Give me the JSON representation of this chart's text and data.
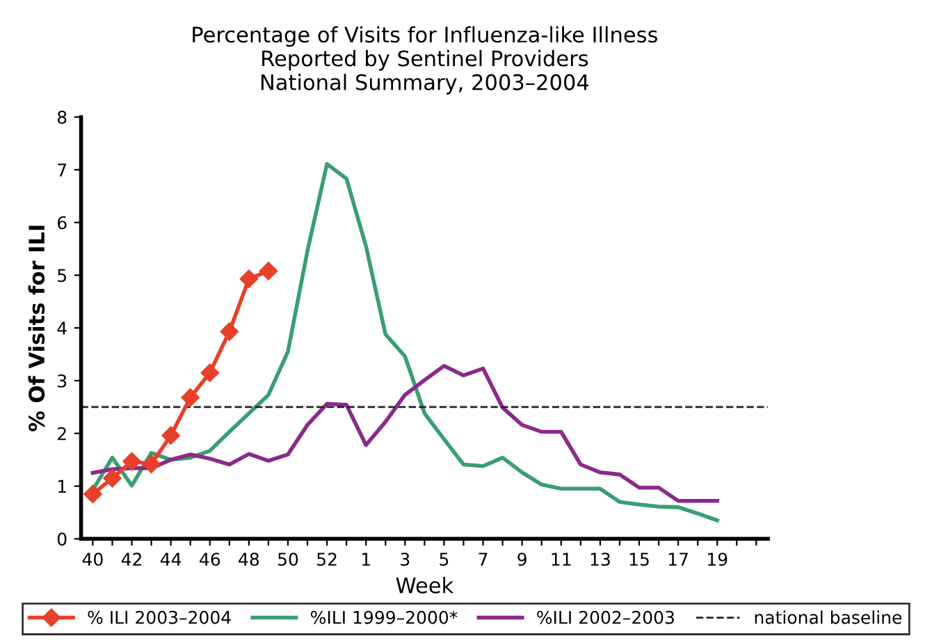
{
  "chart_data": {
    "type": "line",
    "title": "Percentage of Visits for Influenza-like Illness\nReported by Sentinel Providers\nNational Summary, 2003–2004",
    "xlabel": "Week",
    "ylabel": "% Of Visits for ILI",
    "categories": [
      "40",
      null,
      "42",
      null,
      "44",
      null,
      "46",
      null,
      "48",
      null,
      "50",
      null,
      "52",
      null,
      "1",
      null,
      "3",
      null,
      "5",
      null,
      "7",
      null,
      "9",
      null,
      "11",
      null,
      "13",
      null,
      "15",
      null,
      "17",
      null,
      "19",
      null,
      null
    ],
    "series": [
      {
        "name": "% ILI 2003–2004",
        "color": "#e8402a",
        "marker": "diamond",
        "values": [
          0.85,
          1.15,
          1.47,
          1.42,
          1.96,
          2.68,
          3.15,
          3.93,
          4.93,
          5.08,
          null,
          null,
          null,
          null,
          null,
          null,
          null,
          null,
          null,
          null,
          null,
          null,
          null,
          null,
          null,
          null,
          null,
          null,
          null,
          null,
          null,
          null,
          null,
          null,
          null
        ]
      },
      {
        "name": "%ILI 1999–2000*",
        "color": "#3a9e72",
        "values": [
          0.93,
          1.54,
          1.01,
          1.63,
          1.5,
          1.54,
          1.67,
          2.03,
          2.38,
          2.73,
          3.55,
          5.46,
          7.11,
          6.83,
          5.55,
          3.88,
          3.46,
          2.38,
          1.89,
          1.41,
          1.38,
          1.54,
          1.26,
          1.03,
          0.95,
          0.95,
          0.95,
          0.7,
          0.65,
          0.61,
          0.6,
          0.48,
          0.35,
          null,
          null
        ]
      },
      {
        "name": "%ILI 2002–2003",
        "color": "#8b2a8b",
        "values": [
          1.25,
          1.32,
          1.34,
          1.34,
          1.5,
          1.6,
          1.52,
          1.41,
          1.61,
          1.48,
          1.6,
          2.16,
          2.56,
          2.54,
          1.78,
          2.22,
          2.73,
          3.01,
          3.28,
          3.1,
          3.23,
          2.49,
          2.16,
          2.03,
          2.03,
          1.41,
          1.26,
          1.22,
          0.97,
          0.97,
          0.72,
          0.72,
          0.72,
          null,
          null
        ]
      }
    ],
    "ref_lines": [
      {
        "axis": "y",
        "value": 2.5,
        "label": "national baseline",
        "color": "#222222",
        "line_style": "dashed"
      }
    ],
    "ylim": [
      0,
      8
    ],
    "yticks": [
      0,
      1,
      2,
      3,
      4,
      5,
      6,
      7,
      8
    ],
    "grid": false,
    "legend": "bottom"
  }
}
